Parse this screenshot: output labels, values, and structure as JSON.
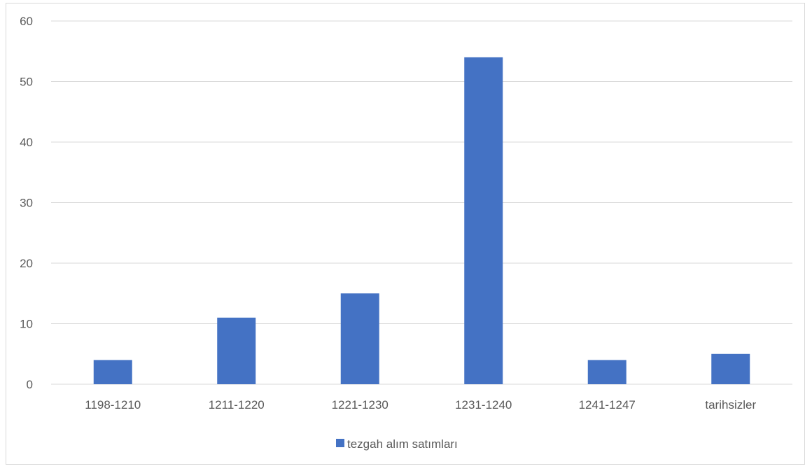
{
  "chart_data": {
    "type": "bar",
    "categories": [
      "1198-1210",
      "1211-1220",
      "1221-1230",
      "1231-1240",
      "1241-1247",
      "tarihsizler"
    ],
    "series": [
      {
        "name": "tezgah alım satımları",
        "values": [
          4,
          11,
          15,
          54,
          4,
          5
        ],
        "color": "#4472c4"
      }
    ],
    "title": "",
    "xlabel": "",
    "ylabel": "",
    "ylim": [
      0,
      60
    ],
    "yticks": [
      0,
      10,
      20,
      30,
      40,
      50,
      60
    ],
    "grid": true,
    "gridColor": "#d9d9d9",
    "legend": "bottom"
  }
}
